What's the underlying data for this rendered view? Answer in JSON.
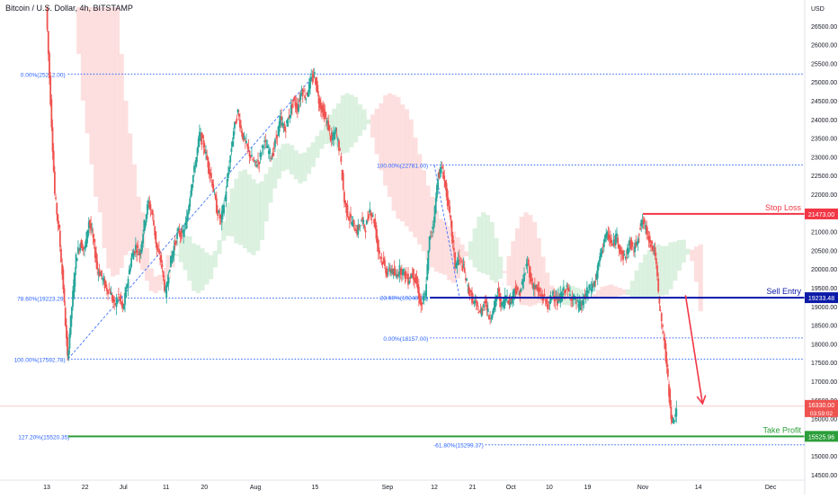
{
  "header": {
    "title": "Bitcoin / U.S. Dollar, 4h, BITSTAMP"
  },
  "axis": {
    "currency": "USD",
    "yticks": [
      14500,
      15000,
      15500,
      16000,
      16500,
      17000,
      17500,
      18000,
      18500,
      19000,
      19500,
      20000,
      20500,
      21000,
      21500,
      22000,
      22500,
      23000,
      23500,
      24000,
      24500,
      25000,
      25500,
      26000,
      26500
    ],
    "ylim": [
      14500,
      27000
    ],
    "xticks": [
      {
        "label": "13",
        "x": 0
      },
      {
        "label": "22",
        "x": 9
      },
      {
        "label": "Jul",
        "x": 18
      },
      {
        "label": "11",
        "x": 28
      },
      {
        "label": "20",
        "x": 37
      },
      {
        "label": "Aug",
        "x": 49
      },
      {
        "label": "15",
        "x": 63
      },
      {
        "label": "Sep",
        "x": 80
      },
      {
        "label": "12",
        "x": 91
      },
      {
        "label": "21",
        "x": 100
      },
      {
        "label": "Oct",
        "x": 109
      },
      {
        "label": "10",
        "x": 118
      },
      {
        "label": "19",
        "x": 127
      },
      {
        "label": "Nov",
        "x": 140
      },
      {
        "label": "14",
        "x": 153
      },
      {
        "label": "Dec",
        "x": 170
      }
    ],
    "xlim": [
      0,
      178
    ]
  },
  "chart_data": {
    "type": "line",
    "title": "Bitcoin / U.S. Dollar, 4h, BITSTAMP",
    "x_unit": "days (approx.)",
    "series": [
      {
        "values": [
          [
            0,
            27000
          ],
          [
            1,
            24500
          ],
          [
            2,
            22000
          ],
          [
            3,
            21000
          ],
          [
            4,
            19500
          ],
          [
            5,
            17600
          ],
          [
            6,
            19000
          ],
          [
            7,
            20300
          ],
          [
            8,
            20700
          ],
          [
            9,
            20500
          ],
          [
            10,
            21300
          ],
          [
            11,
            20800
          ],
          [
            12,
            20000
          ],
          [
            13,
            19800
          ],
          [
            14,
            19500
          ],
          [
            15,
            19400
          ],
          [
            16,
            19000
          ],
          [
            17,
            19300
          ],
          [
            18,
            18900
          ],
          [
            19,
            19600
          ],
          [
            20,
            20300
          ],
          [
            21,
            20600
          ],
          [
            22,
            20400
          ],
          [
            23,
            21200
          ],
          [
            24,
            21800
          ],
          [
            25,
            21400
          ],
          [
            26,
            20500
          ],
          [
            27,
            20200
          ],
          [
            28,
            19300
          ],
          [
            29,
            20100
          ],
          [
            30,
            20600
          ],
          [
            31,
            21000
          ],
          [
            32,
            20900
          ],
          [
            33,
            21300
          ],
          [
            34,
            22200
          ],
          [
            35,
            22800
          ],
          [
            36,
            23600
          ],
          [
            37,
            23300
          ],
          [
            38,
            22800
          ],
          [
            39,
            22300
          ],
          [
            40,
            21600
          ],
          [
            41,
            21300
          ],
          [
            42,
            21900
          ],
          [
            43,
            22800
          ],
          [
            44,
            23700
          ],
          [
            45,
            24200
          ],
          [
            46,
            23600
          ],
          [
            47,
            23300
          ],
          [
            48,
            23000
          ],
          [
            49,
            22800
          ],
          [
            50,
            22900
          ],
          [
            51,
            23400
          ],
          [
            52,
            23200
          ],
          [
            53,
            23000
          ],
          [
            54,
            23500
          ],
          [
            55,
            24000
          ],
          [
            56,
            23700
          ],
          [
            57,
            24100
          ],
          [
            58,
            24500
          ],
          [
            59,
            24300
          ],
          [
            60,
            24800
          ],
          [
            61,
            24600
          ],
          [
            62,
            25000
          ],
          [
            63,
            25200
          ],
          [
            64,
            24500
          ],
          [
            65,
            24200
          ],
          [
            66,
            23900
          ],
          [
            67,
            23400
          ],
          [
            68,
            23700
          ],
          [
            69,
            23100
          ],
          [
            70,
            21800
          ],
          [
            71,
            21400
          ],
          [
            72,
            21200
          ],
          [
            73,
            21000
          ],
          [
            74,
            21300
          ],
          [
            75,
            21100
          ],
          [
            76,
            21600
          ],
          [
            77,
            21300
          ],
          [
            78,
            20500
          ],
          [
            79,
            20200
          ],
          [
            80,
            19900
          ],
          [
            81,
            20000
          ],
          [
            82,
            19800
          ],
          [
            83,
            20000
          ],
          [
            84,
            19900
          ],
          [
            85,
            19700
          ],
          [
            86,
            19900
          ],
          [
            87,
            19600
          ],
          [
            88,
            19000
          ],
          [
            89,
            19300
          ],
          [
            90,
            20800
          ],
          [
            91,
            21300
          ],
          [
            92,
            22500
          ],
          [
            93,
            22700
          ],
          [
            94,
            22000
          ],
          [
            95,
            21200
          ],
          [
            96,
            20100
          ],
          [
            97,
            20300
          ],
          [
            98,
            20000
          ],
          [
            99,
            19500
          ],
          [
            100,
            19200
          ],
          [
            101,
            19000
          ],
          [
            102,
            18800
          ],
          [
            103,
            19200
          ],
          [
            104,
            18700
          ],
          [
            105,
            18900
          ],
          [
            106,
            19400
          ],
          [
            107,
            19000
          ],
          [
            108,
            19300
          ],
          [
            109,
            19100
          ],
          [
            110,
            19500
          ],
          [
            111,
            19300
          ],
          [
            112,
            19700
          ],
          [
            113,
            20200
          ],
          [
            114,
            19600
          ],
          [
            115,
            19500
          ],
          [
            116,
            19300
          ],
          [
            117,
            19200
          ],
          [
            118,
            19000
          ],
          [
            119,
            19400
          ],
          [
            120,
            19100
          ],
          [
            121,
            19300
          ],
          [
            122,
            19500
          ],
          [
            123,
            19300
          ],
          [
            124,
            19200
          ],
          [
            125,
            19000
          ],
          [
            126,
            19100
          ],
          [
            127,
            19400
          ],
          [
            128,
            19500
          ],
          [
            129,
            19700
          ],
          [
            130,
            20300
          ],
          [
            131,
            20800
          ],
          [
            132,
            20900
          ],
          [
            133,
            20600
          ],
          [
            134,
            20900
          ],
          [
            135,
            20400
          ],
          [
            136,
            20300
          ],
          [
            137,
            20700
          ],
          [
            138,
            20500
          ],
          [
            139,
            20900
          ],
          [
            140,
            21300
          ],
          [
            141,
            21000
          ],
          [
            142,
            20700
          ],
          [
            143,
            20400
          ],
          [
            144,
            19000
          ],
          [
            145,
            18200
          ],
          [
            146,
            17000
          ],
          [
            147,
            15800
          ],
          [
            148,
            16300
          ]
        ]
      }
    ],
    "fibonacci_left": [
      {
        "label": "0.00%(25212.00)",
        "value": 25212
      },
      {
        "label": "78.60%(19223.29)",
        "value": 19223.29
      },
      {
        "label": "100.00%(17592.78)",
        "value": 17592.78
      },
      {
        "label": "127.20%(15520.35)",
        "value": 15520.35
      }
    ],
    "fibonacci_right": [
      {
        "label": "100.00%(22781.00)",
        "value": 22781
      },
      {
        "label": "23.60%(19248.26)",
        "value": 19248.26
      },
      {
        "label": "0.00%(18157.00)",
        "value": 18157
      },
      {
        "label": "-61.80%(15299.37)",
        "value": 15299.37
      }
    ],
    "levels": [
      {
        "name": "Stop Loss",
        "value": 21473,
        "tag": "21473.00",
        "color": "#f23645"
      },
      {
        "name": "Sell Entry",
        "value": 19233.48,
        "tag": "19233.48",
        "color": "#0c1aa8"
      },
      {
        "name": "Take Profit",
        "value": 15525.96,
        "tag": "15525.96",
        "color": "#2c9e3a"
      }
    ],
    "current_price": {
      "tag": "16330.00",
      "countdown": "03:59:02",
      "value": 16330
    },
    "arrow": {
      "from": [
        150,
        19300
      ],
      "to": [
        154,
        16400
      ]
    }
  },
  "colors": {
    "up": "#26a69a",
    "down": "#ef5350",
    "fib": "#2962ff",
    "bg": "#ffffff",
    "cloud_red": "#fdd9d9",
    "cloud_green": "#d6efdb"
  }
}
